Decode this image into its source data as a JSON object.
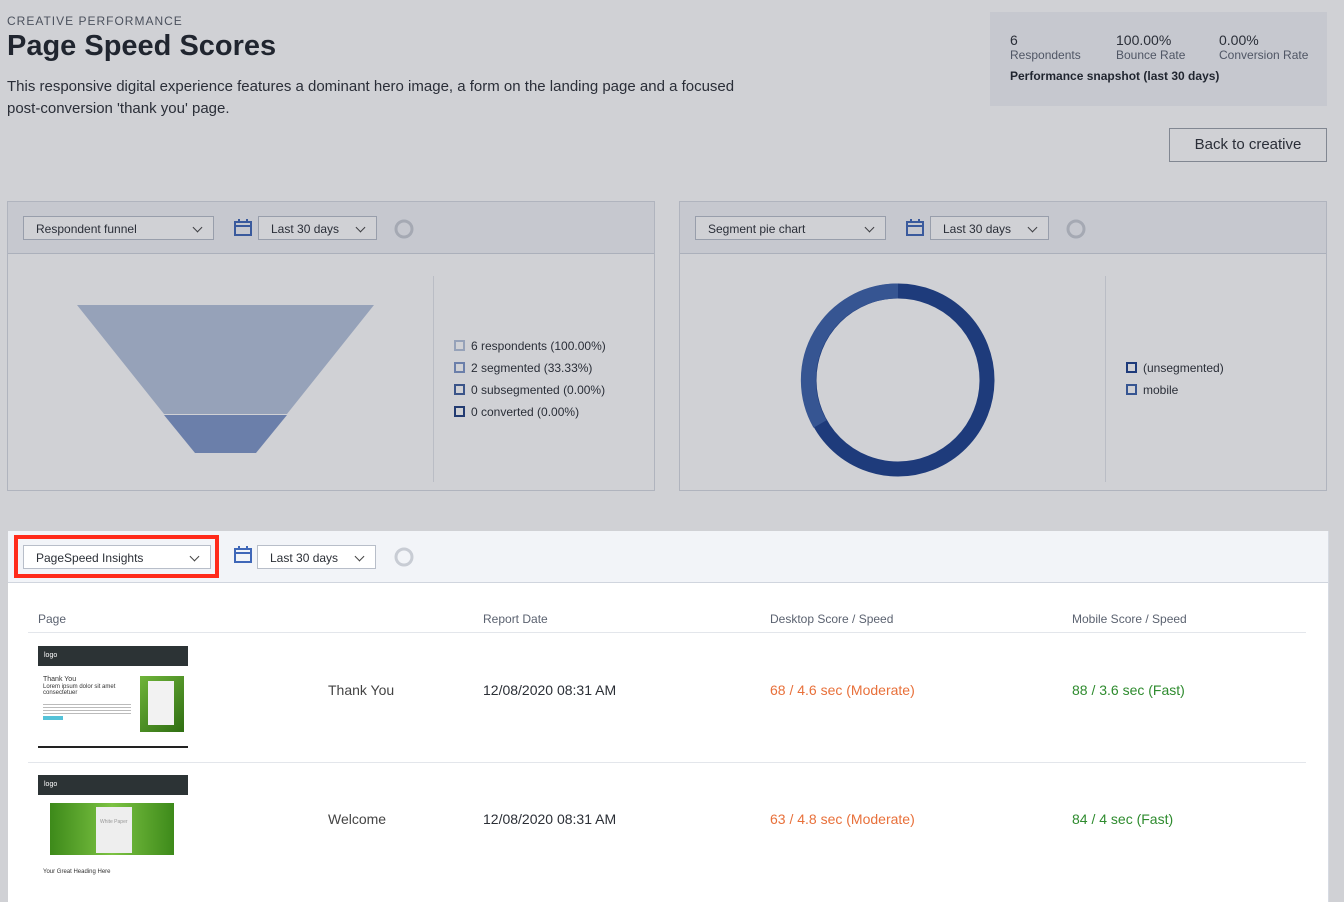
{
  "header": {
    "eyebrow": "CREATIVE PERFORMANCE",
    "title": "Page Speed Scores",
    "description": "This responsive digital experience features a dominant hero image, a form on the landing page and a focused post-conversion 'thank you' page."
  },
  "stats": {
    "items": [
      {
        "value": "6",
        "label": "Respondents"
      },
      {
        "value": "100.00%",
        "label": "Bounce Rate"
      },
      {
        "value": "0.00%",
        "label": "Conversion Rate"
      }
    ],
    "caption": "Performance snapshot (last 30 days)"
  },
  "back_button": "Back to creative",
  "funnel_panel": {
    "dropdown": "Respondent funnel",
    "range": "Last 30 days",
    "legend": [
      "6 respondents (100.00%)",
      "2 segmented (33.33%)",
      "0 subsegmented (0.00%)",
      "0 converted (0.00%)"
    ]
  },
  "segment_panel": {
    "dropdown": "Segment pie chart",
    "range": "Last 30 days",
    "legend": [
      "(unsegmented)",
      "mobile"
    ]
  },
  "pagespeed_panel": {
    "dropdown": "PageSpeed Insights",
    "range": "Last 30 days",
    "columns": [
      "Page",
      "Report Date",
      "Desktop Score / Speed",
      "Mobile Score / Speed"
    ],
    "rows": [
      {
        "page": "Thank You",
        "date": "12/08/2020 08:31 AM",
        "desktop": "68 / 4.6 sec (Moderate)",
        "mobile": "88 / 3.6 sec (Fast)",
        "thumbnail": {
          "logo": "logo",
          "heading": "Thank You",
          "text": "Lorem ipsum dolor sit amet consectetuer"
        }
      },
      {
        "page": "Welcome",
        "date": "12/08/2020 08:31 AM",
        "desktop": "63 / 4.8 sec (Moderate)",
        "mobile": "84 / 4 sec (Fast)",
        "thumbnail": {
          "logo": "logo",
          "heading": "White Paper",
          "text": "Your Great Heading Here"
        }
      }
    ]
  }
}
